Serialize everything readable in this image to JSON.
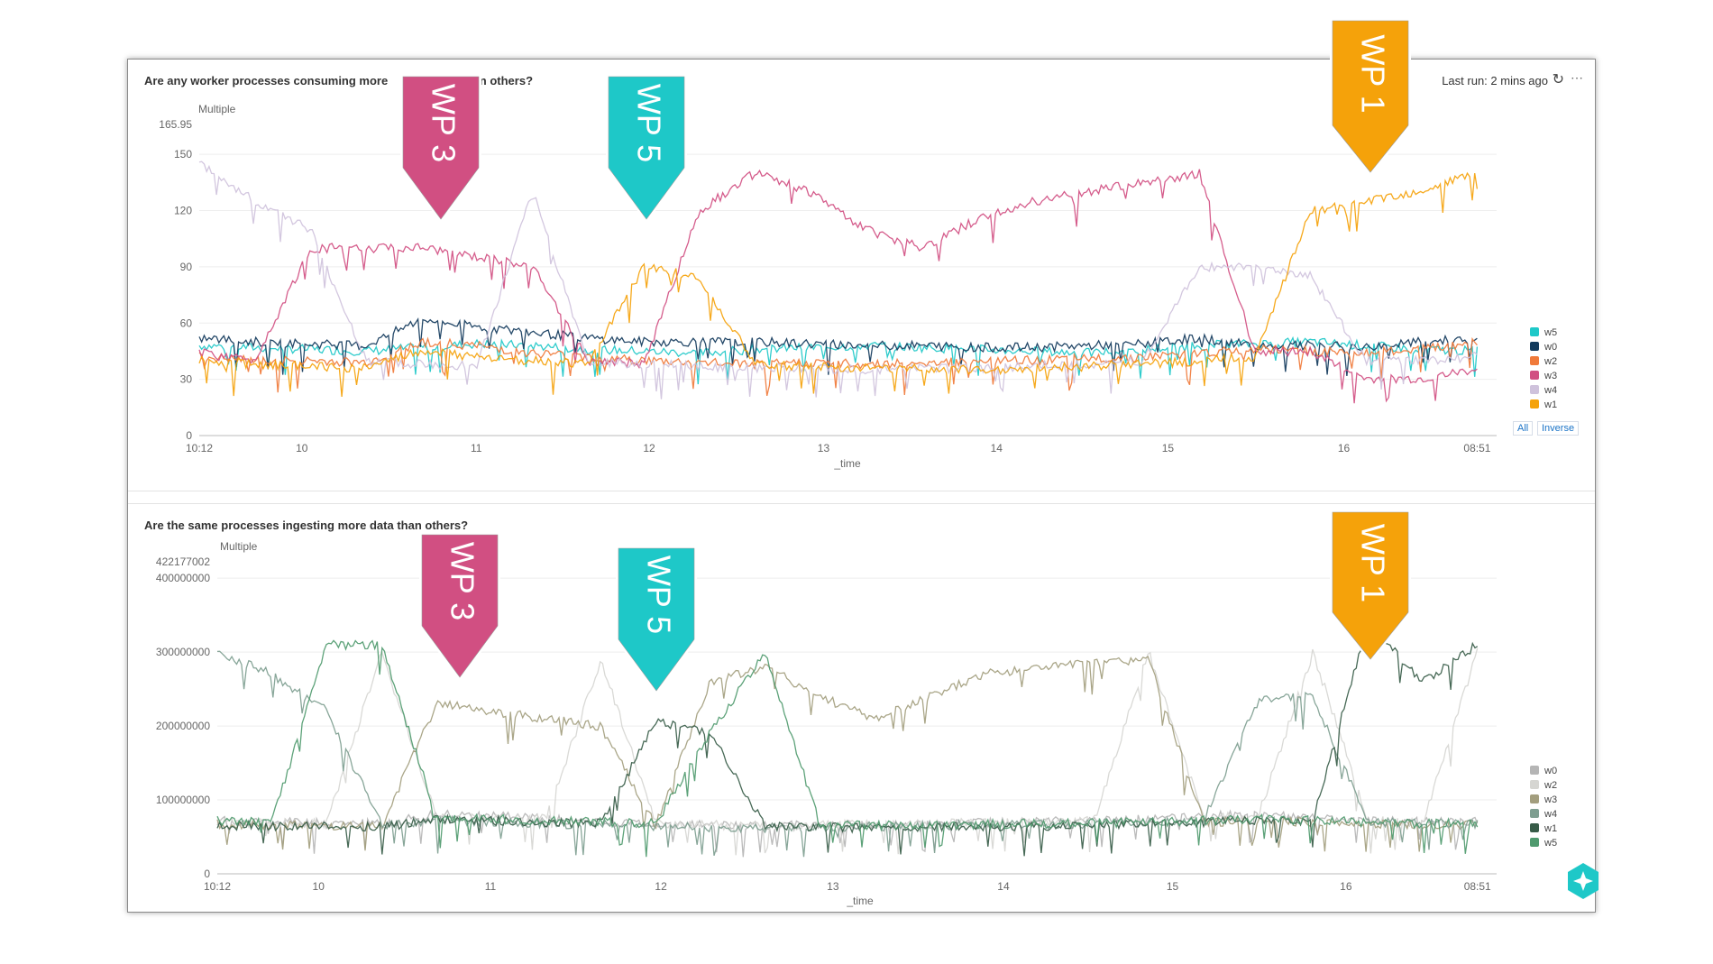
{
  "panels": [
    {
      "title": "Are any worker processes consuming more",
      "title_tail": "es than others?",
      "last_run": "Last run: 2 mins ago",
      "toggle_all": "All",
      "toggle_inverse": "Inverse"
    },
    {
      "title": "Are the same processes ingesting more data than others?"
    }
  ],
  "callouts": [
    {
      "label": "WP 3",
      "color": "#d14f82"
    },
    {
      "label": "WP 5",
      "color": "#1ec8c8"
    },
    {
      "label": "WP 1",
      "color": "#f5a20a"
    },
    {
      "label": "WP 3",
      "color": "#d14f82"
    },
    {
      "label": "WP 5",
      "color": "#1ec8c8"
    },
    {
      "label": "WP 1",
      "color": "#f5a20a"
    }
  ],
  "icons": {
    "refresh": "refresh-icon",
    "more": "more-icon",
    "assistant": "sparkle-icon"
  },
  "chart_data": [
    {
      "type": "line",
      "ylabel": "Multiple",
      "xlabel": "_time",
      "ylim": [
        0,
        165.95
      ],
      "yticks": [
        "0",
        "30",
        "60",
        "90",
        "120",
        "150",
        "165.95"
      ],
      "xticks": [
        "10:12",
        "10",
        "11",
        "12",
        "13",
        "14",
        "15",
        "16",
        "08:51"
      ],
      "legend_placement": "right",
      "series": [
        {
          "name": "w5",
          "color": "#1ec8c8",
          "values": [
            48,
            47,
            46,
            45,
            47,
            49,
            48,
            46,
            45,
            44,
            46,
            47,
            48,
            47,
            46,
            45,
            44,
            46,
            48,
            49,
            50,
            48,
            46,
            45
          ]
        },
        {
          "name": "w0",
          "color": "#123a5c",
          "values": [
            52,
            50,
            49,
            48,
            62,
            58,
            55,
            52,
            50,
            50,
            50,
            49,
            48,
            48,
            47,
            47,
            48,
            49,
            52,
            48,
            48,
            47,
            50,
            52
          ]
        },
        {
          "name": "w2",
          "color": "#f07a3a",
          "values": [
            42,
            40,
            40,
            39,
            50,
            48,
            44,
            42,
            40,
            39,
            38,
            39,
            38,
            39,
            40,
            40,
            41,
            42,
            44,
            46,
            45,
            44,
            46,
            50
          ]
        },
        {
          "name": "w3",
          "color": "#d14f82",
          "values": [
            44,
            40,
            100,
            100,
            100,
            95,
            90,
            40,
            38,
            120,
            140,
            130,
            110,
            100,
            115,
            125,
            130,
            135,
            140,
            45,
            45,
            30,
            30,
            35
          ]
        },
        {
          "name": "w4",
          "color": "#cfc2dc",
          "values": [
            145,
            125,
            110,
            40,
            38,
            37,
            130,
            40,
            38,
            37,
            36,
            36,
            35,
            36,
            36,
            37,
            38,
            40,
            90,
            90,
            85,
            40,
            40,
            42
          ]
        },
        {
          "name": "w1",
          "color": "#f5a20a",
          "values": [
            40,
            38,
            37,
            36,
            45,
            42,
            40,
            38,
            90,
            85,
            38,
            37,
            36,
            36,
            35,
            36,
            37,
            38,
            40,
            42,
            120,
            125,
            130,
            140
          ]
        }
      ]
    },
    {
      "type": "line",
      "ylabel": "Multiple",
      "xlabel": "_time",
      "ylim": [
        0,
        422177002
      ],
      "yticks": [
        "0",
        "100000000",
        "200000000",
        "300000000",
        "400000000",
        "422177002"
      ],
      "xticks": [
        "10:12",
        "10",
        "11",
        "12",
        "13",
        "14",
        "15",
        "16",
        "08:51"
      ],
      "legend_placement": "right",
      "series": [
        {
          "name": "w0",
          "color": "#b5b5b5",
          "values": [
            72,
            70,
            68,
            68,
            80,
            78,
            75,
            70,
            68,
            66,
            65,
            66,
            67,
            68,
            69,
            70,
            72,
            75,
            78,
            80,
            75,
            72,
            70,
            70
          ]
        },
        {
          "name": "w2",
          "color": "#d6d6d2",
          "values": [
            70,
            69,
            68,
            300,
            78,
            76,
            74,
            290,
            68,
            66,
            65,
            66,
            67,
            68,
            69,
            70,
            72,
            300,
            76,
            78,
            300,
            72,
            70,
            300
          ]
        },
        {
          "name": "w3",
          "color": "#a39e7e",
          "values": [
            68,
            66,
            65,
            64,
            230,
            220,
            210,
            200,
            66,
            260,
            280,
            240,
            210,
            240,
            270,
            280,
            285,
            290,
            70,
            72,
            70,
            68,
            66,
            66
          ]
        },
        {
          "name": "w4",
          "color": "#7e9e90",
          "values": [
            300,
            270,
            220,
            66,
            72,
            70,
            68,
            66,
            64,
            63,
            62,
            63,
            64,
            65,
            66,
            67,
            68,
            70,
            72,
            235,
            240,
            70,
            68,
            68
          ]
        },
        {
          "name": "w1",
          "color": "#375c48",
          "values": [
            66,
            65,
            64,
            63,
            74,
            72,
            70,
            68,
            205,
            190,
            64,
            63,
            62,
            63,
            64,
            65,
            66,
            68,
            70,
            72,
            72,
            340,
            260,
            310
          ]
        },
        {
          "name": "w5",
          "color": "#4f9a6e",
          "values": [
            72,
            70,
            310,
            310,
            76,
            74,
            72,
            70,
            68,
            190,
            300,
            66,
            65,
            66,
            67,
            68,
            69,
            70,
            72,
            74,
            72,
            70,
            68,
            68
          ]
        }
      ]
    }
  ]
}
